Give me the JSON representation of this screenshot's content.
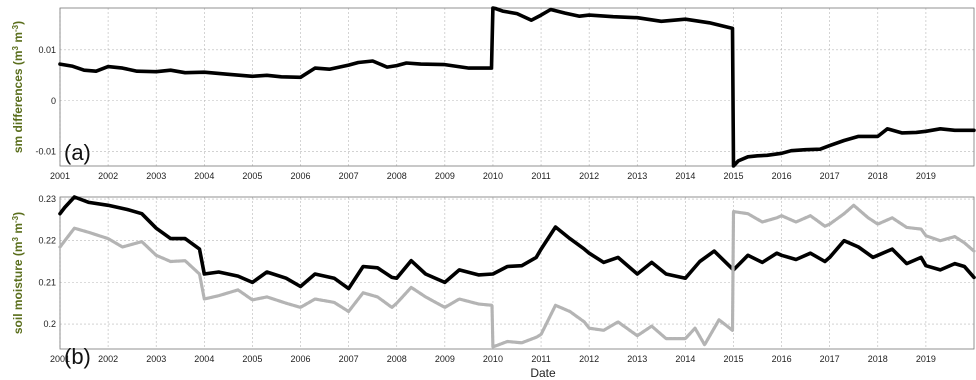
{
  "chart_data": [
    {
      "type": "line",
      "panel_label": "(a)",
      "ylabel_main": "sm differences (m",
      "ylabel_sup": "3",
      "ylabel_mid": " m",
      "ylabel_sup2": "-3",
      "ylabel_end": ")",
      "xlim": [
        2001,
        2020
      ],
      "ylim": [
        -0.0128,
        0.0182
      ],
      "yticks": [
        -0.01,
        0,
        0.01
      ],
      "ytick_labels": [
        "-0.01",
        "0",
        "0.01"
      ],
      "xticks": [
        2001,
        2002,
        2003,
        2004,
        2005,
        2006,
        2007,
        2008,
        2009,
        2010,
        2011,
        2012,
        2013,
        2014,
        2015,
        2016,
        2017,
        2018,
        2019
      ],
      "xtick_labels": [
        "2001",
        "2002",
        "2003",
        "2004",
        "2005",
        "2006",
        "2007",
        "2008",
        "2009",
        "2010",
        "2011",
        "2012",
        "2013",
        "2014",
        "2015",
        "2016",
        "2017",
        "2018",
        "2019"
      ],
      "grid": true,
      "series": [
        {
          "color": "#000000",
          "x": [
            2001.0,
            2001.25,
            2001.5,
            2001.75,
            2002.0,
            2002.3,
            2002.6,
            2003.0,
            2003.3,
            2003.6,
            2004.0,
            2004.5,
            2005.0,
            2005.3,
            2005.6,
            2006.0,
            2006.3,
            2006.6,
            2007.0,
            2007.2,
            2007.5,
            2007.8,
            2008.0,
            2008.2,
            2008.5,
            2009.0,
            2009.5,
            2009.97,
            2010.0,
            2010.05,
            2010.2,
            2010.5,
            2010.8,
            2011.0,
            2011.2,
            2011.5,
            2011.8,
            2012.0,
            2012.5,
            2013.0,
            2013.5,
            2014.0,
            2014.5,
            2014.98,
            2015.0,
            2015.1,
            2015.3,
            2015.5,
            2015.7,
            2016.0,
            2016.2,
            2016.5,
            2016.8,
            2017.0,
            2017.3,
            2017.6,
            2018.0,
            2018.2,
            2018.5,
            2018.8,
            2019.0,
            2019.3,
            2019.6,
            2019.8,
            2020.0
          ],
          "y": [
            0.0072,
            0.0068,
            0.006,
            0.0058,
            0.0067,
            0.0064,
            0.0058,
            0.0057,
            0.006,
            0.0055,
            0.0056,
            0.0052,
            0.0048,
            0.005,
            0.0047,
            0.0046,
            0.0064,
            0.0062,
            0.007,
            0.0075,
            0.0078,
            0.0066,
            0.0069,
            0.0074,
            0.0072,
            0.0071,
            0.0064,
            0.0064,
            0.0182,
            0.0181,
            0.0176,
            0.0171,
            0.0158,
            0.0168,
            0.0179,
            0.0172,
            0.0166,
            0.0168,
            0.0165,
            0.0163,
            0.0156,
            0.016,
            0.0153,
            0.0142,
            -0.0128,
            -0.0118,
            -0.011,
            -0.0108,
            -0.0107,
            -0.0103,
            -0.0098,
            -0.0096,
            -0.0095,
            -0.0088,
            -0.0078,
            -0.007,
            -0.007,
            -0.0055,
            -0.0063,
            -0.0062,
            -0.006,
            -0.0055,
            -0.0058,
            -0.0058,
            -0.0058
          ]
        }
      ]
    },
    {
      "type": "line",
      "panel_label": "(b)",
      "ylabel_main": "soil moisture (m",
      "ylabel_sup": "3",
      "ylabel_mid": " m",
      "ylabel_sup2": "-3",
      "ylabel_end": ")",
      "xlabel": "Date",
      "xlim": [
        2001,
        2020
      ],
      "ylim": [
        0.194,
        0.2305
      ],
      "yticks": [
        0.2,
        0.21,
        0.22,
        0.23
      ],
      "ytick_labels": [
        "0.2",
        "0.21",
        "0.22",
        "0.23"
      ],
      "xticks": [
        2001,
        2002,
        2003,
        2004,
        2005,
        2006,
        2007,
        2008,
        2009,
        2010,
        2011,
        2012,
        2013,
        2014,
        2015,
        2016,
        2017,
        2018,
        2019
      ],
      "xtick_labels": [
        "2001",
        "2002",
        "2003",
        "2004",
        "2005",
        "2006",
        "2007",
        "2008",
        "2009",
        "2010",
        "2011",
        "2012",
        "2013",
        "2014",
        "2015",
        "2016",
        "2017",
        "2018",
        "2019"
      ],
      "grid": true,
      "series": [
        {
          "color": "#000000",
          "x": [
            2001.0,
            2001.1,
            2001.3,
            2001.6,
            2002.0,
            2002.4,
            2002.7,
            2003.0,
            2003.3,
            2003.6,
            2003.9,
            2004.0,
            2004.3,
            2004.7,
            2005.0,
            2005.3,
            2005.7,
            2006.0,
            2006.3,
            2006.7,
            2007.0,
            2007.3,
            2007.6,
            2007.9,
            2008.0,
            2008.3,
            2008.6,
            2009.0,
            2009.3,
            2009.7,
            2010.0,
            2010.3,
            2010.6,
            2010.9,
            2011.0,
            2011.3,
            2011.6,
            2011.9,
            2012.0,
            2012.3,
            2012.6,
            2012.9,
            2013.0,
            2013.3,
            2013.6,
            2014.0,
            2014.3,
            2014.6,
            2015.0,
            2015.3,
            2015.6,
            2015.9,
            2016.0,
            2016.3,
            2016.6,
            2016.9,
            2017.0,
            2017.3,
            2017.6,
            2017.9,
            2018.0,
            2018.3,
            2018.6,
            2018.9,
            2019.0,
            2019.3,
            2019.6,
            2019.8,
            2020.0
          ],
          "y": [
            0.2265,
            0.228,
            0.2305,
            0.2292,
            0.2285,
            0.2275,
            0.2265,
            0.223,
            0.2205,
            0.2205,
            0.218,
            0.212,
            0.2125,
            0.2115,
            0.21,
            0.2125,
            0.211,
            0.209,
            0.212,
            0.211,
            0.2085,
            0.2138,
            0.2135,
            0.2112,
            0.211,
            0.2152,
            0.212,
            0.21,
            0.213,
            0.2118,
            0.212,
            0.2138,
            0.214,
            0.216,
            0.218,
            0.2233,
            0.2205,
            0.218,
            0.217,
            0.2148,
            0.216,
            0.213,
            0.212,
            0.2148,
            0.212,
            0.211,
            0.215,
            0.2175,
            0.213,
            0.2165,
            0.2148,
            0.217,
            0.2165,
            0.2155,
            0.217,
            0.215,
            0.216,
            0.22,
            0.2185,
            0.216,
            0.2165,
            0.218,
            0.2145,
            0.216,
            0.214,
            0.213,
            0.2145,
            0.2138,
            0.2112
          ]
        },
        {
          "color": "#b4b4b4",
          "x": [
            2001.0,
            2001.1,
            2001.3,
            2001.6,
            2002.0,
            2002.3,
            2002.7,
            2003.0,
            2003.3,
            2003.6,
            2003.9,
            2004.0,
            2004.3,
            2004.7,
            2005.0,
            2005.3,
            2005.7,
            2006.0,
            2006.3,
            2006.7,
            2007.0,
            2007.3,
            2007.6,
            2007.9,
            2008.0,
            2008.3,
            2008.6,
            2009.0,
            2009.3,
            2009.7,
            2009.98,
            2010.0,
            2010.3,
            2010.6,
            2010.9,
            2011.0,
            2011.3,
            2011.6,
            2011.9,
            2012.0,
            2012.3,
            2012.6,
            2012.9,
            2013.0,
            2013.3,
            2013.6,
            2014.0,
            2014.2,
            2014.4,
            2014.7,
            2014.98,
            2015.0,
            2015.3,
            2015.6,
            2015.9,
            2016.0,
            2016.3,
            2016.6,
            2016.9,
            2017.0,
            2017.3,
            2017.5,
            2017.8,
            2018.0,
            2018.3,
            2018.6,
            2018.9,
            2019.0,
            2019.3,
            2019.6,
            2019.8,
            2020.0
          ],
          "y": [
            0.2185,
            0.22,
            0.223,
            0.222,
            0.2205,
            0.2185,
            0.2198,
            0.2165,
            0.215,
            0.2152,
            0.212,
            0.206,
            0.2068,
            0.2082,
            0.2058,
            0.2065,
            0.205,
            0.204,
            0.206,
            0.2052,
            0.203,
            0.2075,
            0.2065,
            0.204,
            0.205,
            0.2088,
            0.2065,
            0.204,
            0.206,
            0.2048,
            0.2045,
            0.1945,
            0.1958,
            0.1955,
            0.1968,
            0.1975,
            0.2045,
            0.203,
            0.2005,
            0.199,
            0.1985,
            0.2005,
            0.198,
            0.1972,
            0.1995,
            0.1965,
            0.1965,
            0.199,
            0.195,
            0.201,
            0.1985,
            0.227,
            0.2265,
            0.2245,
            0.2255,
            0.226,
            0.2245,
            0.226,
            0.2235,
            0.224,
            0.2265,
            0.2285,
            0.2255,
            0.224,
            0.2255,
            0.2232,
            0.2228,
            0.2212,
            0.22,
            0.221,
            0.2195,
            0.2175
          ]
        }
      ]
    }
  ]
}
